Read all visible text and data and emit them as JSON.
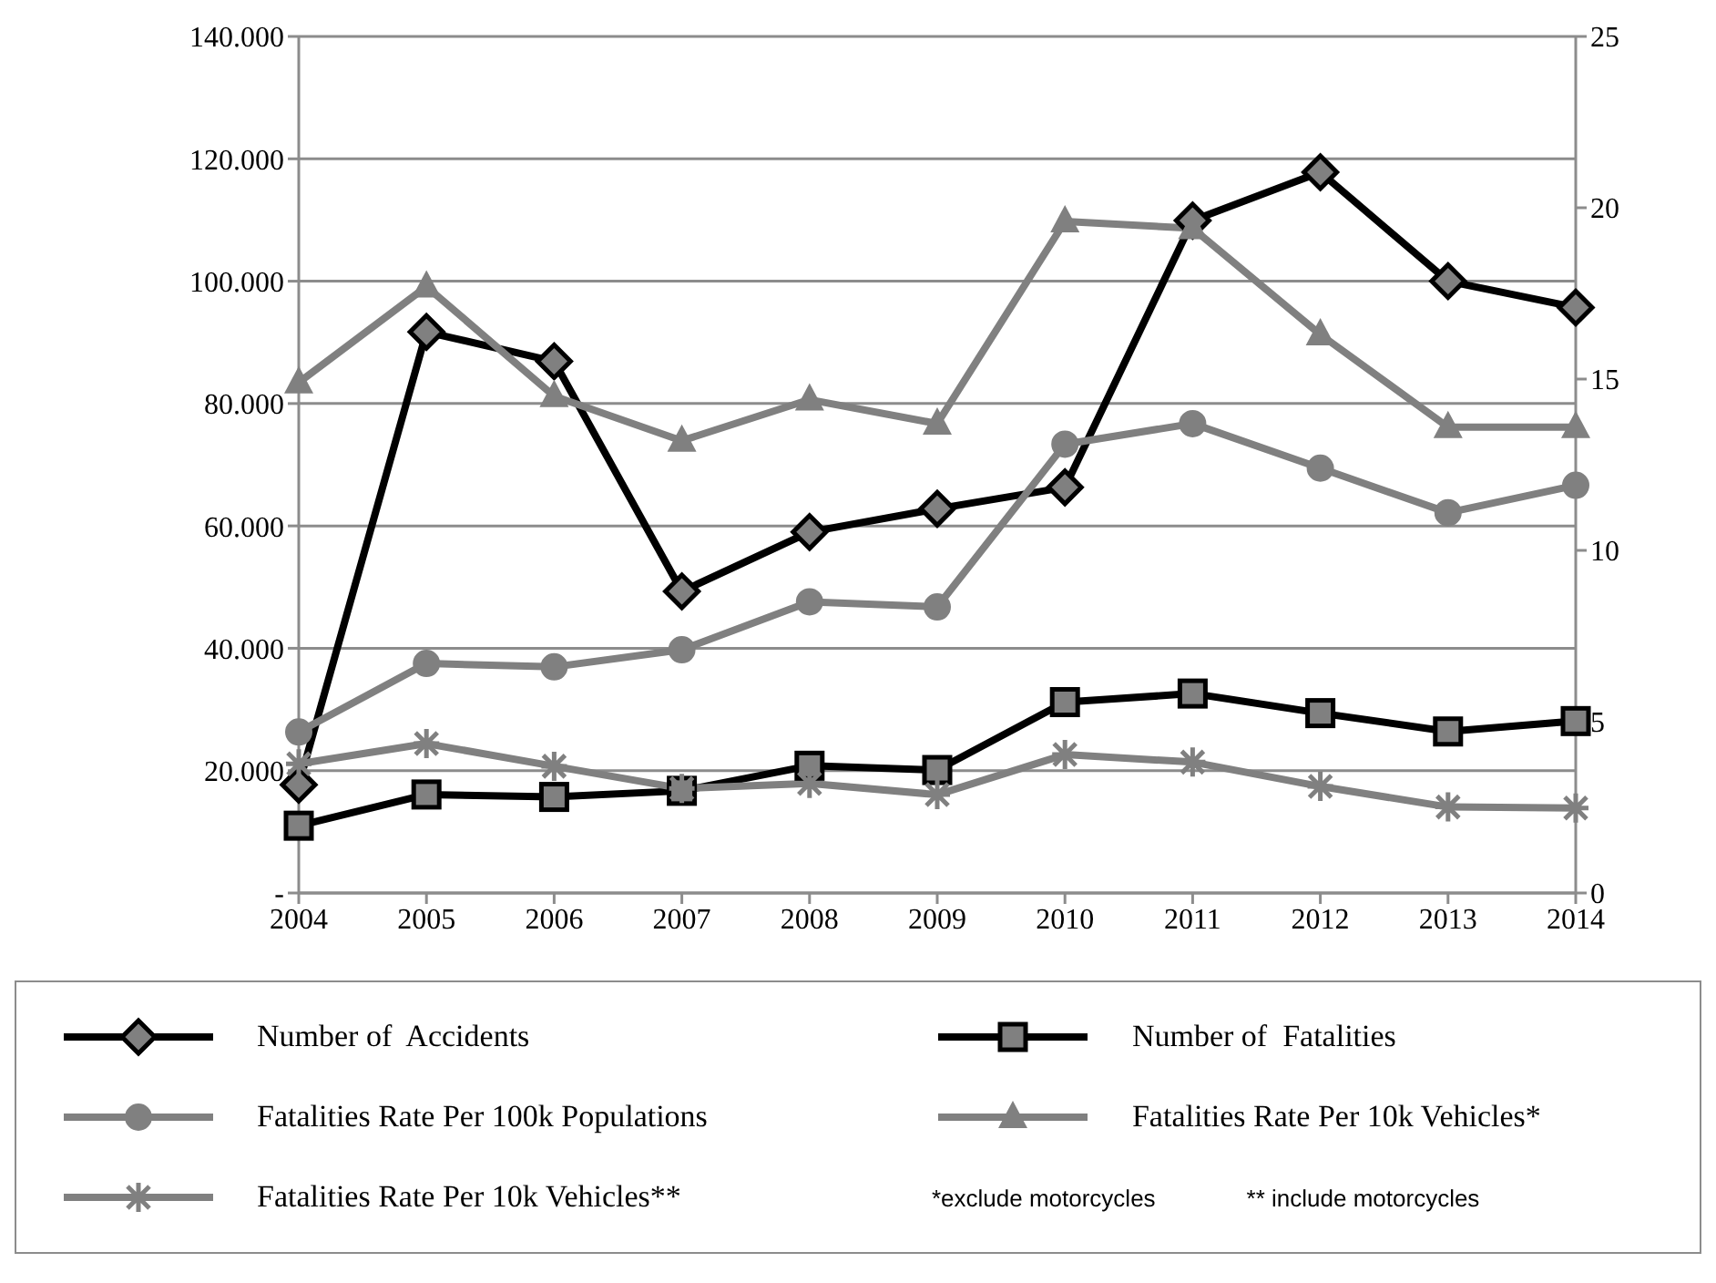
{
  "chart_data": {
    "type": "line",
    "categories": [
      "2004",
      "2005",
      "2006",
      "2007",
      "2008",
      "2009",
      "2010",
      "2011",
      "2012",
      "2013",
      "2014"
    ],
    "series": [
      {
        "name": "Number of  Accidents",
        "color": "#000000",
        "marker": "diamond",
        "values": [
          17700,
          91700,
          86900,
          49300,
          59000,
          62800,
          66300,
          109900,
          117800,
          100000,
          95700
        ]
      },
      {
        "name": "Number of  Fatalities",
        "color": "#000000",
        "marker": "square",
        "values": [
          11000,
          16100,
          15700,
          16700,
          20800,
          20100,
          31200,
          32600,
          29400,
          26400,
          28100
        ]
      },
      {
        "name": "Fatalities Rate Per 100k Populations",
        "color": "#808080",
        "marker": "circle",
        "axis": "y2",
        "values": [
          4.7,
          6.7,
          6.6,
          7.1,
          8.5,
          8.35,
          13.1,
          13.7,
          12.4,
          11.1,
          11.9
        ]
      },
      {
        "name": "Fatalities Rate Per 10k Vehicles*",
        "color": "#808080",
        "marker": "triangle",
        "axis": "y2",
        "values": [
          14.9,
          17.7,
          14.5,
          13.2,
          14.4,
          13.7,
          19.6,
          19.4,
          16.3,
          13.6,
          13.6
        ]
      },
      {
        "name": "Fatalities Rate Per 10k Vehicles**",
        "color": "#808080",
        "marker": "cross",
        "axis": "y2",
        "values": [
          3.77,
          4.36,
          3.7,
          3.05,
          3.2,
          2.87,
          4.04,
          3.82,
          3.11,
          2.51,
          2.48
        ]
      }
    ],
    "ylim": [
      0,
      140000
    ],
    "yticks": [
      {
        "value": 0,
        "label": "-"
      },
      {
        "value": 20000,
        "label": "20.000"
      },
      {
        "value": 40000,
        "label": "40.000"
      },
      {
        "value": 60000,
        "label": "60.000"
      },
      {
        "value": 80000,
        "label": "80.000"
      },
      {
        "value": 100000,
        "label": "100.000"
      },
      {
        "value": 120000,
        "label": "120.000"
      },
      {
        "value": 140000,
        "label": "140.000"
      }
    ],
    "y2lim": [
      0,
      25
    ],
    "y2ticks": [
      0,
      5,
      10,
      15,
      20,
      25
    ],
    "grid": "y",
    "legend": "bottom",
    "line_style": "solid",
    "annotations": [
      "*exclude motorcycles",
      "** include motorcycles"
    ]
  }
}
